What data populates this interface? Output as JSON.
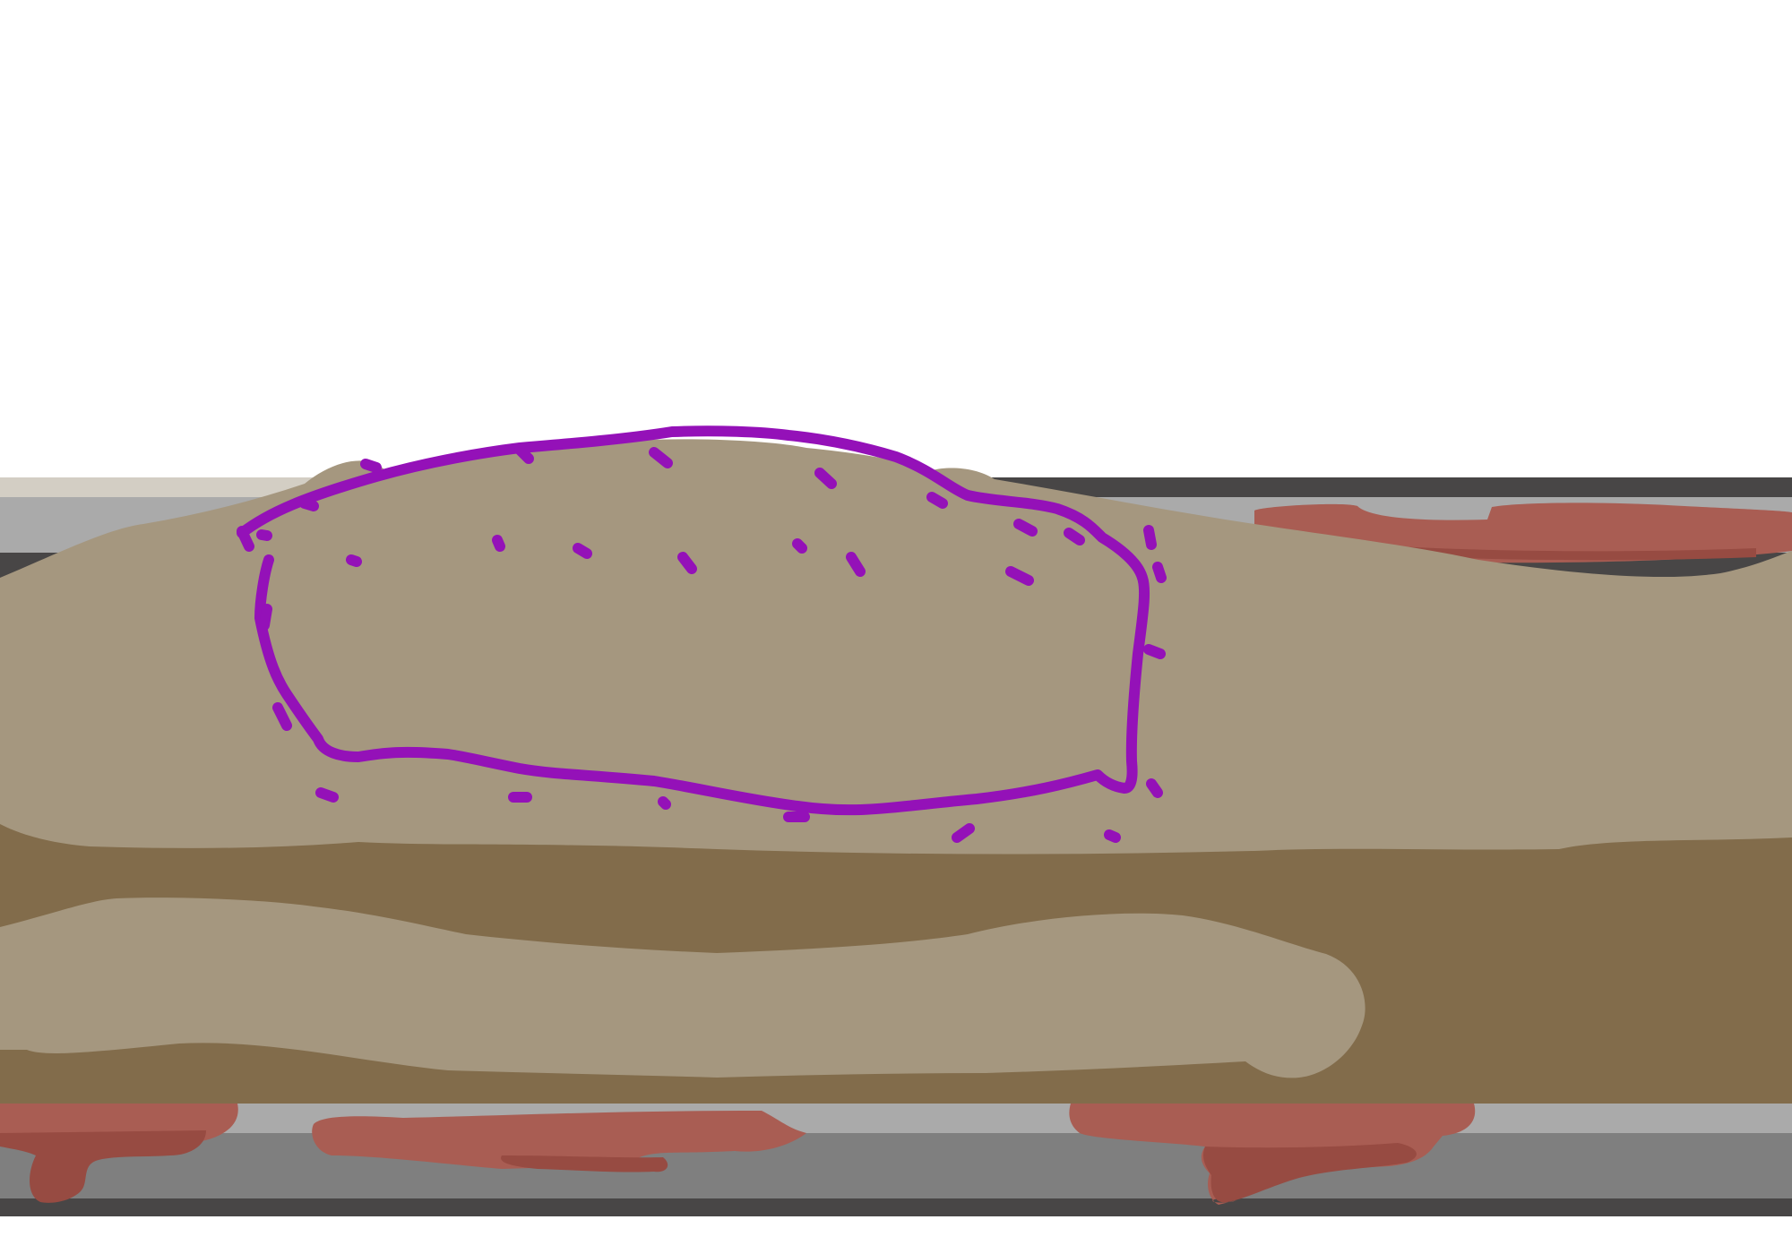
{
  "colors": {
    "background": "#ffffff",
    "wall_outer": "#484646",
    "wall_mid": "#7f7f7f",
    "wall_light": "#aaaaaa",
    "wall_top_light": "#d3cec4",
    "tissue_light": "#a5977f",
    "tissue_dark": "#826c4b",
    "red_lesion": "#a95d53",
    "red_dark": "#974b42",
    "annotation_outline": "#9411b8"
  },
  "layers": [
    {
      "name": "vessel-wall"
    },
    {
      "name": "upper-tissue-band"
    },
    {
      "name": "dark-tissue-core"
    },
    {
      "name": "lower-tissue-band"
    },
    {
      "name": "red-deposits"
    },
    {
      "name": "annotation-outline"
    },
    {
      "name": "annotation-dots"
    }
  ]
}
